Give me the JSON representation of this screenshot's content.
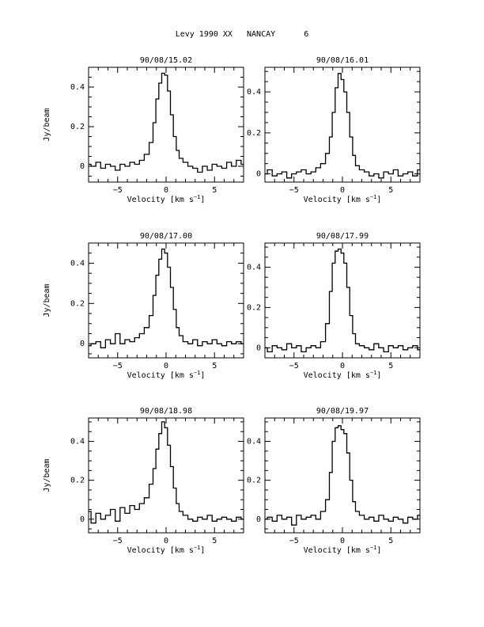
{
  "page_title": "Levy 1990 XX   NANCAY      6",
  "chart_data": [
    {
      "type": "line",
      "title": "90/08/15.02",
      "xlabel": "Velocity [km s^-1]",
      "ylabel": "Jy/beam",
      "xlim": [
        -8,
        8
      ],
      "ylim": [
        -0.08,
        0.5
      ],
      "xticks": [
        -5,
        0,
        5
      ],
      "yticks": [
        0,
        0.2,
        0.4
      ],
      "series": [
        {
          "x": [
            -8,
            -7.5,
            -7,
            -6.5,
            -6,
            -5.5,
            -5,
            -4.5,
            -4,
            -3.5,
            -3,
            -2.5,
            -2,
            -1.5,
            -1.2,
            -0.9,
            -0.6,
            -0.3,
            0,
            0.3,
            0.6,
            0.9,
            1.2,
            1.5,
            2,
            2.5,
            3,
            3.5,
            4,
            4.5,
            5,
            5.5,
            6,
            6.5,
            7,
            7.5,
            8
          ],
          "y": [
            0.01,
            0.0,
            0.02,
            -0.01,
            0.01,
            0.0,
            -0.02,
            0.01,
            0.0,
            0.02,
            0.01,
            0.03,
            0.06,
            0.12,
            0.22,
            0.34,
            0.42,
            0.47,
            0.46,
            0.38,
            0.26,
            0.15,
            0.08,
            0.04,
            0.02,
            0.0,
            -0.01,
            -0.03,
            0.0,
            -0.02,
            0.01,
            0.0,
            -0.01,
            0.02,
            0.0,
            0.03,
            0.01
          ]
        }
      ]
    },
    {
      "type": "line",
      "title": "90/08/16.01",
      "xlabel": "Velocity [km s^-1]",
      "ylabel": "",
      "xlim": [
        -8,
        8
      ],
      "ylim": [
        -0.04,
        0.52
      ],
      "xticks": [
        -5,
        0,
        5
      ],
      "yticks": [
        0,
        0.2,
        0.4
      ],
      "series": [
        {
          "x": [
            -8,
            -7.5,
            -7,
            -6.5,
            -6,
            -5.5,
            -5,
            -4.5,
            -4,
            -3.5,
            -3,
            -2.5,
            -2,
            -1.5,
            -1.2,
            -0.9,
            -0.6,
            -0.3,
            0,
            0.3,
            0.6,
            0.9,
            1.2,
            1.5,
            2,
            2.5,
            3,
            3.5,
            4,
            4.5,
            5,
            5.5,
            6,
            6.5,
            7,
            7.5,
            8
          ],
          "y": [
            0.0,
            0.02,
            -0.01,
            0.0,
            0.01,
            -0.02,
            0.0,
            0.01,
            0.02,
            0.0,
            0.01,
            0.03,
            0.05,
            0.1,
            0.18,
            0.3,
            0.42,
            0.49,
            0.46,
            0.4,
            0.3,
            0.18,
            0.09,
            0.04,
            0.02,
            0.01,
            -0.01,
            0.0,
            -0.02,
            0.01,
            0.0,
            0.02,
            -0.01,
            0.0,
            0.01,
            -0.01,
            0.02
          ]
        }
      ]
    },
    {
      "type": "line",
      "title": "90/08/17.00",
      "xlabel": "Velocity [km s^-1]",
      "ylabel": "Jy/beam",
      "xlim": [
        -8,
        8
      ],
      "ylim": [
        -0.07,
        0.5
      ],
      "xticks": [
        -5,
        0,
        5
      ],
      "yticks": [
        0,
        0.2,
        0.4
      ],
      "series": [
        {
          "x": [
            -8,
            -7.5,
            -7,
            -6.5,
            -6,
            -5.5,
            -5,
            -4.5,
            -4,
            -3.5,
            -3,
            -2.5,
            -2,
            -1.5,
            -1.2,
            -0.9,
            -0.6,
            -0.3,
            0,
            0.3,
            0.6,
            0.9,
            1.2,
            1.5,
            2,
            2.5,
            3,
            3.5,
            4,
            4.5,
            5,
            5.5,
            6,
            6.5,
            7,
            7.5,
            8
          ],
          "y": [
            -0.01,
            0.0,
            0.01,
            -0.02,
            0.02,
            0.0,
            0.05,
            0.0,
            0.02,
            0.01,
            0.03,
            0.05,
            0.08,
            0.14,
            0.24,
            0.34,
            0.42,
            0.47,
            0.45,
            0.38,
            0.28,
            0.17,
            0.08,
            0.04,
            0.01,
            0.0,
            0.02,
            -0.01,
            0.01,
            0.0,
            0.02,
            0.0,
            -0.01,
            0.01,
            0.0,
            0.01,
            0.0
          ]
        }
      ]
    },
    {
      "type": "line",
      "title": "90/08/17.99",
      "xlabel": "Velocity [km s^-1]",
      "ylabel": "",
      "xlim": [
        -8,
        8
      ],
      "ylim": [
        -0.05,
        0.52
      ],
      "xticks": [
        -5,
        0,
        5
      ],
      "yticks": [
        0,
        0.2,
        0.4
      ],
      "series": [
        {
          "x": [
            -8,
            -7.5,
            -7,
            -6.5,
            -6,
            -5.5,
            -5,
            -4.5,
            -4,
            -3.5,
            -3,
            -2.5,
            -2,
            -1.5,
            -1.2,
            -0.9,
            -0.6,
            -0.3,
            0,
            0.3,
            0.6,
            0.9,
            1.2,
            1.5,
            2,
            2.5,
            3,
            3.5,
            4,
            4.5,
            5,
            5.5,
            6,
            6.5,
            7,
            7.5,
            8
          ],
          "y": [
            0.0,
            -0.02,
            0.01,
            0.0,
            -0.01,
            0.02,
            0.0,
            0.01,
            -0.02,
            0.0,
            0.01,
            0.0,
            0.03,
            0.12,
            0.28,
            0.42,
            0.48,
            0.49,
            0.47,
            0.42,
            0.3,
            0.16,
            0.07,
            0.02,
            0.01,
            0.0,
            -0.01,
            0.02,
            0.0,
            -0.02,
            0.01,
            0.0,
            0.01,
            -0.01,
            0.0,
            0.01,
            -0.01
          ]
        }
      ]
    },
    {
      "type": "line",
      "title": "90/08/18.98",
      "xlabel": "Velocity [km s^-1]",
      "ylabel": "Jy/beam",
      "xlim": [
        -8,
        8
      ],
      "ylim": [
        -0.07,
        0.52
      ],
      "xticks": [
        -5,
        0,
        5
      ],
      "yticks": [
        0,
        0.2,
        0.4
      ],
      "series": [
        {
          "x": [
            -8,
            -7.5,
            -7,
            -6.5,
            -6,
            -5.5,
            -5,
            -4.5,
            -4,
            -3.5,
            -3,
            -2.5,
            -2,
            -1.5,
            -1.2,
            -0.9,
            -0.6,
            -0.3,
            0,
            0.3,
            0.6,
            0.9,
            1.2,
            1.5,
            2,
            2.5,
            3,
            3.5,
            4,
            4.5,
            5,
            5.5,
            6,
            6.5,
            7,
            7.5,
            8
          ],
          "y": [
            0.04,
            -0.02,
            0.03,
            0.0,
            0.02,
            0.05,
            -0.01,
            0.06,
            0.03,
            0.07,
            0.05,
            0.08,
            0.11,
            0.18,
            0.26,
            0.36,
            0.44,
            0.5,
            0.47,
            0.38,
            0.27,
            0.16,
            0.08,
            0.04,
            0.02,
            0.0,
            -0.01,
            0.01,
            0.0,
            0.02,
            -0.01,
            0.0,
            0.01,
            0.0,
            -0.01,
            0.01,
            0.0
          ]
        }
      ]
    },
    {
      "type": "line",
      "title": "90/08/19.97",
      "xlabel": "Velocity [km s^-1]",
      "ylabel": "",
      "xlim": [
        -8,
        8
      ],
      "ylim": [
        -0.07,
        0.52
      ],
      "xticks": [
        -5,
        0,
        5
      ],
      "yticks": [
        0,
        0.2,
        0.4
      ],
      "series": [
        {
          "x": [
            -8,
            -7.5,
            -7,
            -6.5,
            -6,
            -5.5,
            -5,
            -4.5,
            -4,
            -3.5,
            -3,
            -2.5,
            -2,
            -1.5,
            -1.2,
            -0.9,
            -0.6,
            -0.3,
            0,
            0.3,
            0.6,
            0.9,
            1.2,
            1.5,
            2,
            2.5,
            3,
            3.5,
            4,
            4.5,
            5,
            5.5,
            6,
            6.5,
            7,
            7.5,
            8
          ],
          "y": [
            0.0,
            0.01,
            -0.01,
            0.02,
            0.0,
            0.01,
            -0.03,
            0.02,
            0.0,
            0.01,
            0.02,
            0.0,
            0.04,
            0.1,
            0.24,
            0.4,
            0.47,
            0.48,
            0.46,
            0.44,
            0.34,
            0.2,
            0.09,
            0.04,
            0.02,
            0.0,
            0.01,
            -0.01,
            0.02,
            0.0,
            -0.01,
            0.01,
            0.0,
            -0.02,
            0.01,
            0.0,
            0.02
          ]
        }
      ]
    }
  ]
}
